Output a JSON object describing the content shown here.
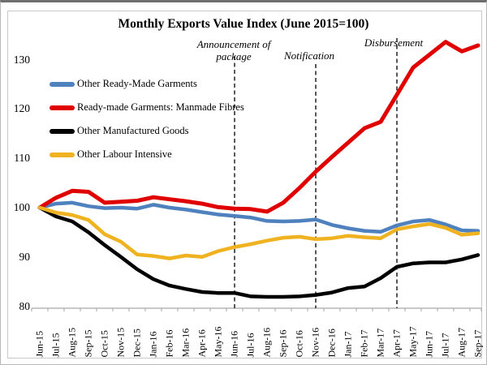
{
  "chart_data": {
    "type": "line",
    "title": "Monthly Exports Value Index (June 2015=100)",
    "xlabel": "",
    "ylabel": "",
    "ylim": [
      80,
      135
    ],
    "yticks": [
      80,
      90,
      100,
      110,
      120,
      130
    ],
    "grid": false,
    "legend_position": "top-left",
    "x": [
      "Jun-15",
      "Jul-15",
      "Aug-15",
      "Sep-15",
      "Oct-15",
      "Nov-15",
      "Dec-15",
      "Jan-16",
      "Feb-16",
      "Mar-16",
      "Apr-16",
      "May-16",
      "Jun-16",
      "Jul-16",
      "Aug-16",
      "Sep-16",
      "Oct-16",
      "Nov-16",
      "Dec-16",
      "Jan-17",
      "Feb-17",
      "Mar-17",
      "Apr-17",
      "May-17",
      "Jun-17",
      "Jul-17",
      "Aug-17",
      "Sep-17"
    ],
    "series": [
      {
        "name": "Other Ready-Made Garments",
        "color": "#4E81BD",
        "values": [
          100,
          100.8,
          101.0,
          100.3,
          99.9,
          100.0,
          99.8,
          100.6,
          100.0,
          99.6,
          99.1,
          98.6,
          98.3,
          98.0,
          97.3,
          97.2,
          97.3,
          97.6,
          96.5,
          95.8,
          95.3,
          95.1,
          96.4,
          97.2,
          97.5,
          96.6,
          95.4,
          95.3
        ]
      },
      {
        "name": "Ready-made Garments: Manmade Fibres",
        "color": "#E00000",
        "values": [
          100,
          102.0,
          103.4,
          103.2,
          101.0,
          101.2,
          101.4,
          102.1,
          101.7,
          101.3,
          100.8,
          100.1,
          99.8,
          99.7,
          99.2,
          101.0,
          104.0,
          107.3,
          110.3,
          113.2,
          116.1,
          117.4,
          122.9,
          128.4,
          131.0,
          133.6,
          131.7,
          132.9
        ]
      },
      {
        "name": "Other Manufactured Goods",
        "color": "#000000",
        "values": [
          100,
          98.2,
          97.2,
          95.0,
          92.4,
          90.0,
          87.5,
          85.5,
          84.2,
          83.5,
          82.9,
          82.7,
          82.7,
          82.0,
          81.9,
          81.9,
          82.0,
          82.3,
          82.8,
          83.7,
          84.0,
          85.7,
          88.0,
          88.7,
          88.9,
          88.9,
          89.5,
          90.4
        ]
      },
      {
        "name": "Other Labour Intensive",
        "color": "#EFB321",
        "values": [
          100,
          99.0,
          98.5,
          97.5,
          94.6,
          93.1,
          90.5,
          90.2,
          89.7,
          90.3,
          90.0,
          91.2,
          92.0,
          92.6,
          93.3,
          93.9,
          94.1,
          93.6,
          93.8,
          94.3,
          94.0,
          93.8,
          95.6,
          96.2,
          96.7,
          95.9,
          94.5,
          94.8
        ]
      }
    ],
    "annotations": [
      {
        "label": "Announcement of package",
        "lines": [
          "Announcement of",
          "package"
        ],
        "month": "Jun-16"
      },
      {
        "label": "Notification",
        "lines": [
          "Notification"
        ],
        "month": "Nov-16"
      },
      {
        "label": "Disbursement",
        "lines": [
          "Disbursement"
        ],
        "month": "Apr-17"
      }
    ]
  }
}
